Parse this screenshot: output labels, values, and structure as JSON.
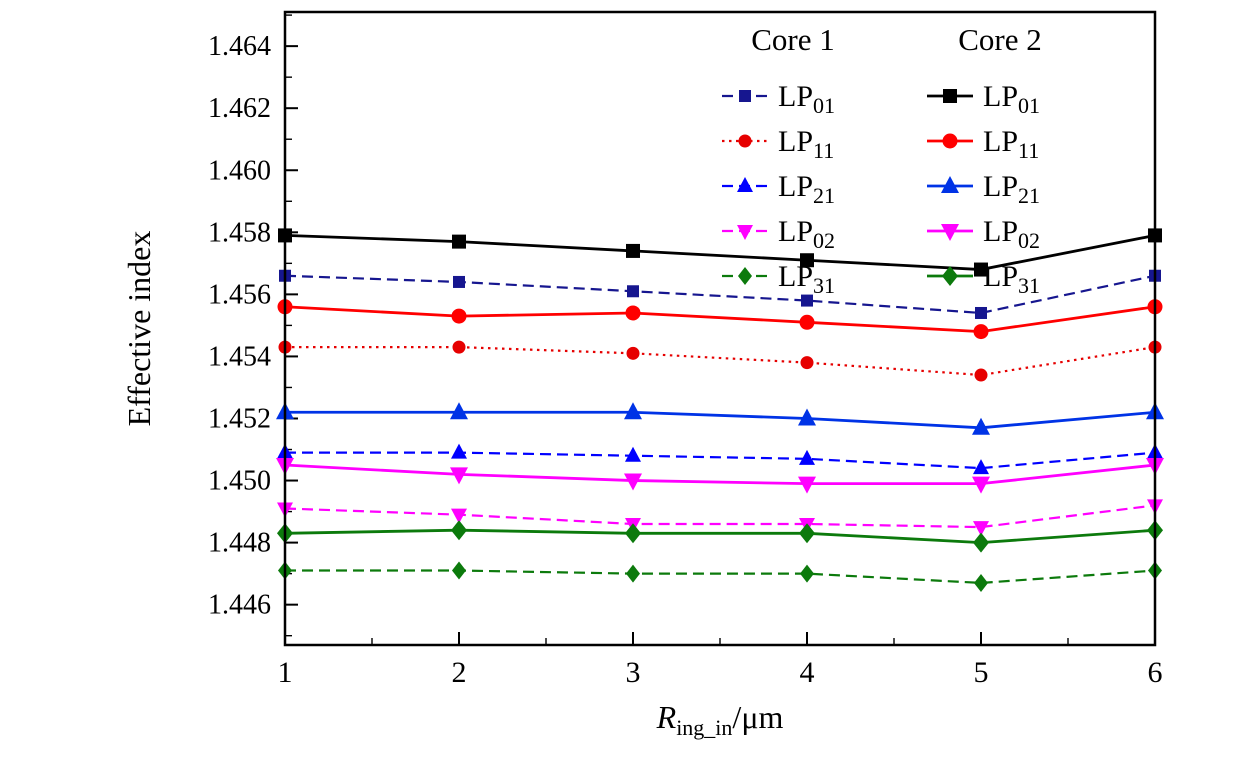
{
  "chart_data": {
    "type": "line",
    "title": "",
    "ylabel": "Effective index",
    "xlabel": {
      "var": "R",
      "sub": "ing_in",
      "unit": "/μm"
    },
    "x": [
      1,
      2,
      3,
      4,
      5,
      6
    ],
    "xlim": [
      1,
      6
    ],
    "ylim": [
      1.4447,
      1.4651
    ],
    "xticks": [
      1,
      2,
      3,
      4,
      5,
      6
    ],
    "yticks": [
      1.446,
      1.448,
      1.45,
      1.452,
      1.454,
      1.456,
      1.458,
      1.46,
      1.462,
      1.464
    ],
    "y_minor_step": 0.001,
    "x_minor_step": 0.5,
    "grid": false,
    "legend": {
      "columns": [
        "Core 1",
        "Core 2"
      ],
      "position": "top-right-inside"
    },
    "series": [
      {
        "group": "Core 1",
        "base": "LP",
        "sub": "01",
        "marker": "square",
        "line_style": "dash",
        "color": "#16168f",
        "values": [
          1.4566,
          1.4564,
          1.4561,
          1.4558,
          1.4554,
          1.4566
        ]
      },
      {
        "group": "Core 1",
        "base": "LP",
        "sub": "11",
        "marker": "circle",
        "line_style": "dot",
        "color": "#e60000",
        "values": [
          1.4543,
          1.4543,
          1.4541,
          1.4538,
          1.4534,
          1.4543
        ]
      },
      {
        "group": "Core 1",
        "base": "LP",
        "sub": "21",
        "marker": "triangle-up",
        "line_style": "dash",
        "color": "#0000ff",
        "values": [
          1.4509,
          1.4509,
          1.4508,
          1.4507,
          1.4504,
          1.4509
        ]
      },
      {
        "group": "Core 1",
        "base": "LP",
        "sub": "02",
        "marker": "triangle-down",
        "line_style": "dash",
        "color": "#ff00ff",
        "values": [
          1.4491,
          1.4489,
          1.4486,
          1.4486,
          1.4485,
          1.4492
        ]
      },
      {
        "group": "Core 1",
        "base": "LP",
        "sub": "31",
        "marker": "diamond",
        "line_style": "dash",
        "color": "#0c7a0c",
        "values": [
          1.4471,
          1.4471,
          1.447,
          1.447,
          1.4467,
          1.4471
        ]
      },
      {
        "group": "Core 2",
        "base": "LP",
        "sub": "01",
        "marker": "square",
        "line_style": "solid",
        "color": "#000000",
        "values": [
          1.4579,
          1.4577,
          1.4574,
          1.4571,
          1.4568,
          1.4579
        ]
      },
      {
        "group": "Core 2",
        "base": "LP",
        "sub": "11",
        "marker": "circle",
        "line_style": "solid",
        "color": "#ff0000",
        "values": [
          1.4556,
          1.4553,
          1.4554,
          1.4551,
          1.4548,
          1.4556
        ]
      },
      {
        "group": "Core 2",
        "base": "LP",
        "sub": "21",
        "marker": "triangle-up",
        "line_style": "solid",
        "color": "#0033e6",
        "values": [
          1.4522,
          1.4522,
          1.4522,
          1.452,
          1.4517,
          1.4522
        ]
      },
      {
        "group": "Core 2",
        "base": "LP",
        "sub": "02",
        "marker": "triangle-down",
        "line_style": "solid",
        "color": "#ff00ff",
        "values": [
          1.4505,
          1.4502,
          1.45,
          1.4499,
          1.4499,
          1.4505
        ]
      },
      {
        "group": "Core 2",
        "base": "LP",
        "sub": "31",
        "marker": "diamond",
        "line_style": "solid",
        "color": "#0c7a0c",
        "values": [
          1.4483,
          1.4484,
          1.4483,
          1.4483,
          1.448,
          1.4484
        ]
      }
    ]
  }
}
